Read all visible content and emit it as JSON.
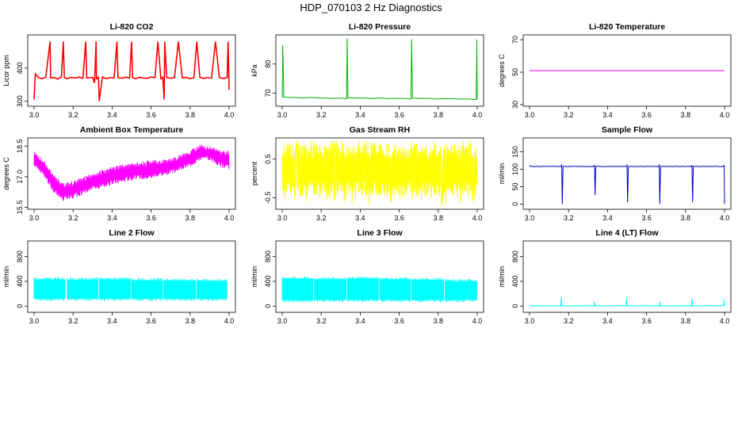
{
  "page": {
    "title": "HDP_070103  2 Hz Diagnostics"
  },
  "chart_data": [
    {
      "type": "line",
      "title": "Li-820 CO2",
      "xlabel": "",
      "ylabel": "Licor ppm",
      "xlim": [
        3.0,
        4.0
      ],
      "ylim": [
        285,
        500
      ],
      "xticks": [
        "3.0",
        "3.2",
        "3.4",
        "3.6",
        "3.8",
        "4.0"
      ],
      "yticks": [
        "300",
        "400"
      ],
      "ytick_values": [
        300,
        400
      ],
      "color": "#ff0000",
      "series": [
        {
          "x": [
            3.0,
            3.005,
            3.007,
            3.02,
            3.04,
            3.06,
            3.082,
            3.085,
            3.1,
            3.12,
            3.14,
            3.15,
            3.155,
            3.17,
            3.19,
            3.21,
            3.23,
            3.25,
            3.265,
            3.27,
            3.29,
            3.3,
            3.31,
            3.318,
            3.32,
            3.33,
            3.334,
            3.35,
            3.37,
            3.39,
            3.41,
            3.425,
            3.43,
            3.45,
            3.47,
            3.49,
            3.5,
            3.505,
            3.52,
            3.54,
            3.56,
            3.58,
            3.6,
            3.62,
            3.635,
            3.65,
            3.66,
            3.667,
            3.67,
            3.68,
            3.7,
            3.72,
            3.74,
            3.76,
            3.78,
            3.8,
            3.82,
            3.834,
            3.85,
            3.87,
            3.89,
            3.91,
            3.93,
            3.95,
            3.97,
            3.99,
            3.995,
            4.0
          ],
          "y": [
            305,
            370,
            382,
            372,
            368,
            373,
            480,
            370,
            372,
            367,
            373,
            480,
            371,
            368,
            372,
            370,
            373,
            369,
            480,
            370,
            371,
            372,
            355,
            480,
            368,
            372,
            300,
            373,
            368,
            371,
            370,
            480,
            372,
            369,
            373,
            370,
            480,
            371,
            368,
            372,
            370,
            369,
            373,
            371,
            480,
            368,
            372,
            305,
            480,
            372,
            369,
            371,
            480,
            370,
            372,
            368,
            371,
            480,
            372,
            369,
            371,
            370,
            480,
            372,
            368,
            371,
            480,
            335
          ]
        }
      ]
    },
    {
      "type": "line",
      "title": "Li-820 Pressure",
      "xlabel": "",
      "ylabel": "kPa",
      "xlim": [
        3.0,
        4.0
      ],
      "ylim": [
        65.5,
        90
      ],
      "xticks": [
        "3.0",
        "3.2",
        "3.4",
        "3.6",
        "3.8",
        "4.0"
      ],
      "yticks": [
        "70",
        "80"
      ],
      "ytick_values": [
        70,
        80
      ],
      "color": "#00b400",
      "series": [
        {
          "x": [
            3.0,
            3.003,
            3.008,
            3.05,
            3.1,
            3.15,
            3.2,
            3.25,
            3.3,
            3.33,
            3.333,
            3.337,
            3.4,
            3.45,
            3.5,
            3.55,
            3.6,
            3.66,
            3.664,
            3.668,
            3.7,
            3.75,
            3.8,
            3.85,
            3.9,
            3.95,
            3.995,
            3.998,
            4.0
          ],
          "y": [
            68.5,
            86.5,
            68.6,
            68.5,
            68.4,
            68.5,
            68.3,
            68.2,
            68.3,
            68.0,
            88.8,
            68.4,
            68.3,
            68.2,
            68.3,
            68.1,
            68.2,
            68.0,
            88.5,
            68.3,
            68.2,
            68.2,
            68.0,
            68.1,
            68.0,
            68.0,
            67.8,
            88.4,
            68.0
          ]
        }
      ]
    },
    {
      "type": "line",
      "title": "Li-820 Temperature",
      "xlabel": "",
      "ylabel": "degrees C",
      "xlim": [
        3.0,
        4.0
      ],
      "ylim": [
        29,
        73
      ],
      "xticks": [
        "3.0",
        "3.2",
        "3.4",
        "3.6",
        "3.8",
        "4.0"
      ],
      "yticks": [
        "30",
        "50",
        "70"
      ],
      "ytick_values": [
        30,
        50,
        70
      ],
      "color": "#ff00ff",
      "series": [
        {
          "x": [
            3.0,
            4.0
          ],
          "y": [
            51,
            51
          ]
        }
      ]
    },
    {
      "type": "area",
      "title": "Ambient Box Temperature",
      "xlabel": "",
      "ylabel": "degrees C",
      "xlim": [
        3.0,
        4.0
      ],
      "ylim": [
        15.4,
        18.9
      ],
      "xticks": [
        "3.0",
        "3.2",
        "3.4",
        "3.6",
        "3.8",
        "4.0"
      ],
      "yticks": [
        "15.5",
        "17.0",
        "18.5"
      ],
      "ytick_values": [
        15.5,
        17.0,
        18.5
      ],
      "color": "#ff00ff",
      "series": [
        {
          "x": [
            3.0,
            3.05,
            3.1,
            3.15,
            3.2,
            3.3,
            3.4,
            3.5,
            3.6,
            3.7,
            3.8,
            3.85,
            3.9,
            3.95,
            4.0
          ],
          "y_low": [
            17.5,
            17.0,
            16.2,
            15.8,
            15.9,
            16.3,
            16.6,
            16.8,
            16.9,
            17.1,
            17.5,
            17.8,
            17.8,
            17.5,
            17.3
          ],
          "y_high": [
            18.3,
            17.8,
            17.1,
            16.7,
            16.8,
            17.2,
            17.5,
            17.7,
            17.8,
            17.9,
            18.3,
            18.6,
            18.5,
            18.3,
            18.3
          ]
        }
      ]
    },
    {
      "type": "area",
      "title": "Gas Stream RH",
      "xlabel": "",
      "ylabel": "percent",
      "xlim": [
        3.0,
        4.0
      ],
      "ylim": [
        -0.8,
        1.05
      ],
      "xticks": [
        "3.0",
        "3.2",
        "3.4",
        "3.6",
        "3.8",
        "4.0"
      ],
      "yticks": [
        "-0.5",
        "0.5"
      ],
      "ytick_values": [
        -0.5,
        0.5
      ],
      "color": "#ffff00",
      "series": [
        {
          "x": [
            3.0,
            3.2,
            3.4,
            3.6,
            3.8,
            4.0
          ],
          "y_low": [
            -0.45,
            -0.45,
            -0.45,
            -0.45,
            -0.45,
            -0.45
          ],
          "y_high": [
            0.9,
            0.9,
            0.9,
            0.9,
            0.9,
            0.9
          ],
          "y_min_spikes": [
            -0.7,
            -0.75,
            -0.7,
            -0.72,
            -0.7
          ],
          "y_max_spikes": [
            1.0,
            1.0,
            1.0,
            1.0,
            1.0
          ]
        }
      ]
    },
    {
      "type": "line",
      "title": "Sample Flow",
      "xlabel": "",
      "ylabel": "ml/min",
      "xlim": [
        3.0,
        4.0
      ],
      "ylim": [
        -15,
        190
      ],
      "xticks": [
        "3.0",
        "3.2",
        "3.4",
        "3.6",
        "3.8",
        "4.0"
      ],
      "yticks": [
        "0",
        "50",
        "100",
        "150"
      ],
      "ytick_values": [
        0,
        50,
        100,
        150
      ],
      "color": "#0000cc",
      "series": [
        {
          "x": [
            3.0,
            3.005,
            3.16,
            3.165,
            3.168,
            3.172,
            3.33,
            3.333,
            3.336,
            3.34,
            3.495,
            3.5,
            3.503,
            3.507,
            3.66,
            3.665,
            3.668,
            3.672,
            3.83,
            3.833,
            3.836,
            3.84,
            3.995,
            3.998,
            4.0
          ],
          "y": [
            112,
            108,
            108,
            112,
            0,
            108,
            108,
            112,
            25,
            108,
            108,
            112,
            5,
            108,
            108,
            112,
            0,
            108,
            108,
            112,
            5,
            108,
            108,
            112,
            0
          ]
        }
      ]
    },
    {
      "type": "area",
      "title": "Line 2 Flow",
      "xlabel": "",
      "ylabel": "ml/min",
      "xlim": [
        3.0,
        4.0
      ],
      "ylim": [
        -100,
        1050
      ],
      "xticks": [
        "3.0",
        "3.2",
        "3.4",
        "3.6",
        "3.8",
        "4.0"
      ],
      "yticks": [
        "0",
        "400",
        "800"
      ],
      "ytick_values": [
        0,
        400,
        800
      ],
      "color": "#00ffff",
      "series": [
        {
          "segments": [
            [
              3.0,
              3.16
            ],
            [
              3.17,
              3.33
            ],
            [
              3.335,
              3.495
            ],
            [
              3.5,
              3.66
            ],
            [
              3.665,
              3.83
            ],
            [
              3.835,
              3.99
            ]
          ],
          "y_low": 120,
          "y_high": [
            430,
            425,
            430,
            415,
            410,
            405
          ]
        }
      ]
    },
    {
      "type": "area",
      "title": "Line 3 Flow",
      "xlabel": "",
      "ylabel": "ml/min",
      "xlim": [
        3.0,
        4.0
      ],
      "ylim": [
        -100,
        1050
      ],
      "xticks": [
        "3.0",
        "3.2",
        "3.4",
        "3.6",
        "3.8",
        "4.0"
      ],
      "yticks": [
        "0",
        "400",
        "800"
      ],
      "ytick_values": [
        0,
        400,
        800
      ],
      "color": "#00ffff",
      "series": [
        {
          "segments": [
            [
              3.0,
              3.16
            ],
            [
              3.165,
              3.33
            ],
            [
              3.335,
              3.495
            ],
            [
              3.5,
              3.66
            ],
            [
              3.665,
              3.83
            ],
            [
              3.835,
              4.0
            ]
          ],
          "y_low": 100,
          "y_high": [
            440,
            430,
            440,
            430,
            420,
            400
          ]
        }
      ]
    },
    {
      "type": "line",
      "title": "Line 4 (LT) Flow",
      "xlabel": "",
      "ylabel": "ml/min",
      "xlim": [
        3.0,
        4.0
      ],
      "ylim": [
        -100,
        1050
      ],
      "xticks": [
        "3.0",
        "3.2",
        "3.4",
        "3.6",
        "3.8",
        "4.0"
      ],
      "yticks": [
        "0",
        "400",
        "800"
      ],
      "ytick_values": [
        0,
        400,
        800
      ],
      "color": "#00ffff",
      "series": [
        {
          "x": [
            3.0,
            3.16,
            3.163,
            3.166,
            3.33,
            3.333,
            3.336,
            3.495,
            3.498,
            3.501,
            3.665,
            3.668,
            3.671,
            3.83,
            3.833,
            3.836,
            3.995,
            3.998,
            4.0
          ],
          "y": [
            5,
            5,
            150,
            5,
            5,
            70,
            5,
            5,
            140,
            5,
            5,
            70,
            5,
            5,
            130,
            5,
            5,
            100,
            5
          ]
        }
      ]
    }
  ]
}
